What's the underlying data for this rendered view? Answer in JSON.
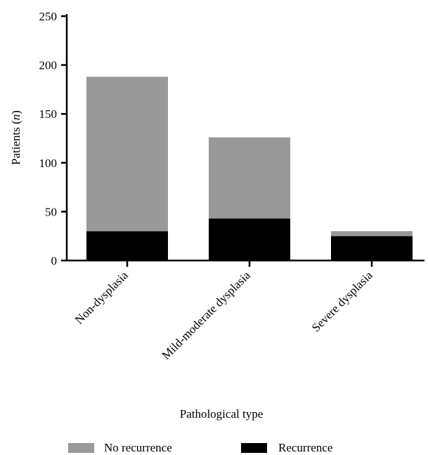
{
  "chart_data": {
    "type": "bar",
    "stacked": true,
    "categories": [
      "Non-dysplasia",
      "Mild-moderate dysplasia",
      "Severe dysplasia"
    ],
    "series": [
      {
        "name": "Recurrence",
        "values": [
          30,
          43,
          25
        ],
        "color": "#000000"
      },
      {
        "name": "No recurrence",
        "values": [
          158,
          83,
          5
        ],
        "color": "#999999"
      }
    ],
    "title": "",
    "xlabel": "Pathological type",
    "ylabel": "Patients",
    "ylabel_unit": "n",
    "ylim": [
      0,
      250
    ],
    "yticks": [
      0,
      50,
      100,
      150,
      200,
      250
    ],
    "grid": false,
    "legend": {
      "position": "bottom",
      "order": [
        "No recurrence",
        "Recurrence"
      ]
    }
  }
}
